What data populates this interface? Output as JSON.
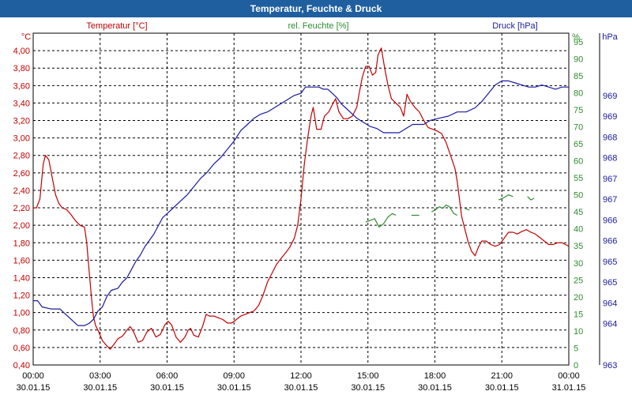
{
  "window": {
    "title": "Temperatur, Feuchte & Druck"
  },
  "chart_data": {
    "type": "line",
    "title": "Temperatur, Feuchte & Druck",
    "x": {
      "tick_times": [
        "00:00",
        "03:00",
        "06:00",
        "09:00",
        "12:00",
        "15:00",
        "18:00",
        "21:00",
        "00:00"
      ],
      "tick_dates": [
        "30.01.15",
        "30.01.15",
        "30.01.15",
        "30.01.15",
        "30.01.15",
        "30.01.15",
        "30.01.15",
        "30.01.15",
        "31.01.15"
      ],
      "range_hours": [
        0,
        24
      ]
    },
    "axes": {
      "temperature": {
        "label": "Temperatur [°C]",
        "unit": "°C",
        "range": [
          0.4,
          4.2
        ],
        "step": 0.2,
        "ticks": [
          "4,00",
          "3,80",
          "3,60",
          "3,40",
          "3,20",
          "3,00",
          "2,80",
          "2,60",
          "2,40",
          "2,20",
          "2,00",
          "1,80",
          "1,60",
          "1,40",
          "1,20",
          "1,00",
          "0,80",
          "0,60",
          "0,40"
        ],
        "tick_values": [
          4.0,
          3.8,
          3.6,
          3.4,
          3.2,
          3.0,
          2.8,
          2.6,
          2.4,
          2.2,
          2.0,
          1.8,
          1.6,
          1.4,
          1.2,
          1.0,
          0.8,
          0.6,
          0.4
        ]
      },
      "humidity": {
        "label": "rel. Feuchte [%]",
        "unit": "%",
        "range": [
          0,
          97.5
        ],
        "step": 5,
        "ticks": [
          "95",
          "90",
          "85",
          "80",
          "75",
          "70",
          "65",
          "60",
          "55",
          "50",
          "45",
          "40",
          "35",
          "30",
          "25",
          "20",
          "15",
          "10",
          "5",
          "0"
        ],
        "tick_values": [
          95,
          90,
          85,
          80,
          75,
          70,
          65,
          60,
          55,
          50,
          45,
          40,
          35,
          30,
          25,
          20,
          15,
          10,
          5,
          0
        ]
      },
      "pressure": {
        "label": "Druck [hPa]",
        "unit": "hPa",
        "range": [
          963,
          971
        ],
        "ticks": [
          "969",
          "969",
          "968",
          "968",
          "967",
          "967",
          "966",
          "966",
          "965",
          "965",
          "964",
          "964",
          "963"
        ],
        "tick_values": [
          969.5,
          969.0,
          968.5,
          968.0,
          967.5,
          967.0,
          966.5,
          966.0,
          965.5,
          965.0,
          964.5,
          964.0,
          963.0
        ]
      }
    },
    "series": [
      {
        "name": "Temperatur [°C]",
        "axis": "temperature",
        "color": "#c00000",
        "points": [
          [
            0.0,
            2.2
          ],
          [
            0.15,
            2.2
          ],
          [
            0.3,
            2.3
          ],
          [
            0.45,
            2.7
          ],
          [
            0.55,
            2.8
          ],
          [
            0.7,
            2.75
          ],
          [
            0.85,
            2.55
          ],
          [
            1.0,
            2.35
          ],
          [
            1.15,
            2.25
          ],
          [
            1.3,
            2.2
          ],
          [
            1.5,
            2.18
          ],
          [
            1.7,
            2.12
          ],
          [
            1.9,
            2.05
          ],
          [
            2.1,
            2.0
          ],
          [
            2.3,
            1.98
          ],
          [
            2.4,
            1.8
          ],
          [
            2.5,
            1.5
          ],
          [
            2.6,
            1.2
          ],
          [
            2.7,
            0.95
          ],
          [
            2.8,
            0.85
          ],
          [
            2.9,
            0.8
          ],
          [
            3.0,
            0.74
          ],
          [
            3.1,
            0.68
          ],
          [
            3.3,
            0.62
          ],
          [
            3.45,
            0.58
          ],
          [
            3.6,
            0.63
          ],
          [
            3.8,
            0.7
          ],
          [
            4.0,
            0.73
          ],
          [
            4.2,
            0.8
          ],
          [
            4.35,
            0.84
          ],
          [
            4.5,
            0.78
          ],
          [
            4.7,
            0.66
          ],
          [
            4.9,
            0.68
          ],
          [
            5.1,
            0.78
          ],
          [
            5.3,
            0.82
          ],
          [
            5.5,
            0.72
          ],
          [
            5.7,
            0.75
          ],
          [
            5.9,
            0.86
          ],
          [
            6.05,
            0.9
          ],
          [
            6.2,
            0.86
          ],
          [
            6.4,
            0.72
          ],
          [
            6.6,
            0.66
          ],
          [
            6.8,
            0.72
          ],
          [
            6.95,
            0.8
          ],
          [
            7.05,
            0.82
          ],
          [
            7.2,
            0.74
          ],
          [
            7.4,
            0.72
          ],
          [
            7.6,
            0.85
          ],
          [
            7.75,
            0.98
          ],
          [
            7.9,
            0.96
          ],
          [
            8.1,
            0.96
          ],
          [
            8.3,
            0.94
          ],
          [
            8.5,
            0.92
          ],
          [
            8.7,
            0.88
          ],
          [
            8.9,
            0.88
          ],
          [
            9.1,
            0.92
          ],
          [
            9.3,
            0.96
          ],
          [
            9.6,
            0.99
          ],
          [
            9.9,
            1.02
          ],
          [
            10.1,
            1.08
          ],
          [
            10.3,
            1.2
          ],
          [
            10.5,
            1.35
          ],
          [
            10.7,
            1.45
          ],
          [
            10.9,
            1.55
          ],
          [
            11.1,
            1.62
          ],
          [
            11.3,
            1.68
          ],
          [
            11.5,
            1.75
          ],
          [
            11.7,
            1.85
          ],
          [
            11.85,
            2.0
          ],
          [
            12.0,
            2.3
          ],
          [
            12.15,
            2.7
          ],
          [
            12.3,
            3.0
          ],
          [
            12.45,
            3.25
          ],
          [
            12.55,
            3.35
          ],
          [
            12.7,
            3.1
          ],
          [
            12.9,
            3.1
          ],
          [
            13.05,
            3.25
          ],
          [
            13.25,
            3.3
          ],
          [
            13.4,
            3.38
          ],
          [
            13.55,
            3.45
          ],
          [
            13.7,
            3.3
          ],
          [
            13.9,
            3.22
          ],
          [
            14.1,
            3.22
          ],
          [
            14.3,
            3.25
          ],
          [
            14.5,
            3.35
          ],
          [
            14.6,
            3.5
          ],
          [
            14.75,
            3.7
          ],
          [
            14.9,
            3.82
          ],
          [
            15.05,
            3.82
          ],
          [
            15.2,
            3.72
          ],
          [
            15.35,
            3.75
          ],
          [
            15.45,
            3.95
          ],
          [
            15.6,
            4.03
          ],
          [
            15.75,
            3.8
          ],
          [
            15.9,
            3.6
          ],
          [
            16.05,
            3.45
          ],
          [
            16.25,
            3.4
          ],
          [
            16.45,
            3.35
          ],
          [
            16.6,
            3.25
          ],
          [
            16.75,
            3.5
          ],
          [
            16.9,
            3.42
          ],
          [
            17.1,
            3.35
          ],
          [
            17.3,
            3.3
          ],
          [
            17.5,
            3.2
          ],
          [
            17.7,
            3.12
          ],
          [
            17.9,
            3.1
          ],
          [
            18.1,
            3.08
          ],
          [
            18.3,
            3.05
          ],
          [
            18.5,
            2.95
          ],
          [
            18.7,
            2.8
          ],
          [
            18.9,
            2.65
          ],
          [
            19.0,
            2.5
          ],
          [
            19.1,
            2.3
          ],
          [
            19.2,
            2.1
          ],
          [
            19.35,
            1.95
          ],
          [
            19.5,
            1.8
          ],
          [
            19.65,
            1.7
          ],
          [
            19.8,
            1.65
          ],
          [
            19.95,
            1.75
          ],
          [
            20.1,
            1.82
          ],
          [
            20.3,
            1.82
          ],
          [
            20.5,
            1.78
          ],
          [
            20.7,
            1.76
          ],
          [
            20.9,
            1.78
          ],
          [
            21.1,
            1.85
          ],
          [
            21.3,
            1.92
          ],
          [
            21.5,
            1.92
          ],
          [
            21.7,
            1.9
          ],
          [
            21.9,
            1.93
          ],
          [
            22.1,
            1.95
          ],
          [
            22.3,
            1.92
          ],
          [
            22.5,
            1.9
          ],
          [
            22.7,
            1.86
          ],
          [
            22.9,
            1.82
          ],
          [
            23.1,
            1.78
          ],
          [
            23.3,
            1.78
          ],
          [
            23.5,
            1.8
          ],
          [
            23.7,
            1.8
          ],
          [
            23.85,
            1.78
          ],
          [
            24.0,
            1.76
          ]
        ]
      },
      {
        "name": "rel. Feuchte [%]",
        "axis": "humidity",
        "color": "#2e8b2e",
        "segments": [
          [
            [
              14.9,
              42.0
            ],
            [
              15.1,
              42.5
            ],
            [
              15.3,
              43.0
            ],
            [
              15.5,
              40.5
            ],
            [
              15.7,
              41.5
            ],
            [
              15.9,
              43.5
            ],
            [
              16.1,
              44.5
            ],
            [
              16.25,
              44.0
            ]
          ],
          [
            [
              16.95,
              44.0
            ],
            [
              17.3,
              44.0
            ]
          ],
          [
            [
              17.85,
              45.0
            ],
            [
              18.0,
              45.5
            ],
            [
              18.2,
              46.5
            ],
            [
              18.35,
              46.0
            ],
            [
              18.5,
              47.0
            ],
            [
              18.65,
              46.5
            ],
            [
              18.85,
              44.5
            ],
            [
              19.0,
              44.0
            ]
          ],
          [
            [
              19.35,
              46.0
            ],
            [
              19.55,
              45.5
            ]
          ],
          [
            [
              20.85,
              48.5
            ],
            [
              21.05,
              49.0
            ],
            [
              21.3,
              50.0
            ],
            [
              21.5,
              49.5
            ]
          ],
          [
            [
              22.15,
              49.5
            ],
            [
              22.3,
              48.5
            ],
            [
              22.45,
              49.0
            ]
          ]
        ]
      },
      {
        "name": "Druck [hPa]",
        "axis": "pressure",
        "color": "#1a1aa0",
        "points": [
          [
            0.0,
            964.55
          ],
          [
            0.2,
            964.55
          ],
          [
            0.4,
            964.4
          ],
          [
            0.8,
            964.35
          ],
          [
            1.2,
            964.35
          ],
          [
            1.4,
            964.25
          ],
          [
            1.7,
            964.1
          ],
          [
            2.0,
            963.95
          ],
          [
            2.3,
            963.95
          ],
          [
            2.5,
            964.0
          ],
          [
            2.7,
            964.1
          ],
          [
            2.9,
            964.3
          ],
          [
            3.1,
            964.4
          ],
          [
            3.3,
            964.65
          ],
          [
            3.5,
            964.8
          ],
          [
            3.8,
            964.85
          ],
          [
            4.0,
            965.0
          ],
          [
            4.2,
            965.1
          ],
          [
            4.4,
            965.3
          ],
          [
            4.6,
            965.5
          ],
          [
            4.8,
            965.65
          ],
          [
            5.0,
            965.85
          ],
          [
            5.2,
            966.0
          ],
          [
            5.4,
            966.15
          ],
          [
            5.6,
            966.35
          ],
          [
            5.8,
            966.55
          ],
          [
            6.0,
            966.65
          ],
          [
            6.3,
            966.8
          ],
          [
            6.6,
            966.95
          ],
          [
            6.9,
            967.1
          ],
          [
            7.2,
            967.3
          ],
          [
            7.5,
            967.5
          ],
          [
            7.8,
            967.65
          ],
          [
            8.1,
            967.85
          ],
          [
            8.4,
            968.0
          ],
          [
            8.7,
            968.2
          ],
          [
            9.0,
            968.4
          ],
          [
            9.3,
            968.65
          ],
          [
            9.6,
            968.8
          ],
          [
            9.9,
            968.95
          ],
          [
            10.2,
            969.05
          ],
          [
            10.5,
            969.1
          ],
          [
            10.8,
            969.2
          ],
          [
            11.1,
            969.3
          ],
          [
            11.4,
            969.4
          ],
          [
            11.7,
            969.5
          ],
          [
            12.0,
            969.55
          ],
          [
            12.2,
            969.7
          ],
          [
            12.5,
            969.7
          ],
          [
            12.8,
            969.7
          ],
          [
            13.0,
            969.65
          ],
          [
            13.2,
            969.65
          ],
          [
            13.4,
            969.55
          ],
          [
            13.6,
            969.45
          ],
          [
            13.8,
            969.3
          ],
          [
            14.0,
            969.2
          ],
          [
            14.2,
            969.1
          ],
          [
            14.5,
            968.95
          ],
          [
            14.8,
            968.85
          ],
          [
            15.1,
            968.75
          ],
          [
            15.4,
            968.7
          ],
          [
            15.7,
            968.6
          ],
          [
            16.0,
            968.6
          ],
          [
            16.4,
            968.6
          ],
          [
            16.7,
            968.7
          ],
          [
            17.0,
            968.8
          ],
          [
            17.5,
            968.8
          ],
          [
            17.8,
            968.9
          ],
          [
            18.2,
            968.95
          ],
          [
            18.6,
            969.0
          ],
          [
            19.0,
            969.1
          ],
          [
            19.4,
            969.1
          ],
          [
            19.8,
            969.2
          ],
          [
            20.1,
            969.35
          ],
          [
            20.4,
            969.55
          ],
          [
            20.7,
            969.75
          ],
          [
            21.0,
            969.85
          ],
          [
            21.3,
            969.85
          ],
          [
            21.6,
            969.8
          ],
          [
            21.9,
            969.75
          ],
          [
            22.2,
            969.7
          ],
          [
            22.5,
            969.7
          ],
          [
            22.8,
            969.75
          ],
          [
            23.1,
            969.7
          ],
          [
            23.4,
            969.65
          ],
          [
            23.7,
            969.7
          ],
          [
            24.0,
            969.7
          ]
        ]
      }
    ]
  }
}
